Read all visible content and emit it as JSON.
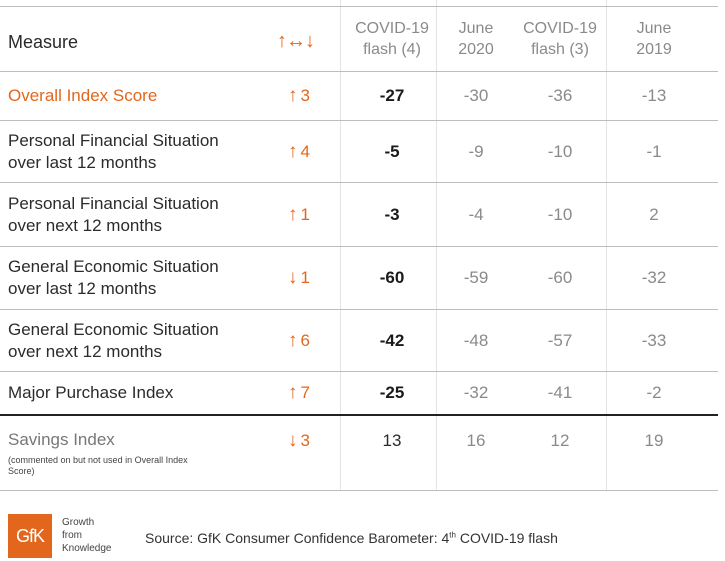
{
  "header": {
    "measure": "Measure",
    "change_arrows": "↑↔↓",
    "columns": [
      {
        "line1": "COVID-19",
        "line2": "flash (4)"
      },
      {
        "line1": "June",
        "line2": "2020"
      },
      {
        "line1": "COVID-19",
        "line2": "flash (3)"
      },
      {
        "line1": "June",
        "line2": "2019"
      }
    ]
  },
  "rows": [
    {
      "line1": "Overall Index Score",
      "line2": "",
      "arrow": "↑",
      "change": "3",
      "v1": "-27",
      "v2": "-30",
      "v3": "-36",
      "v4": "-13"
    },
    {
      "line1": "Personal Financial Situation",
      "line2": "over last 12 months",
      "arrow": "↑",
      "change": "4",
      "v1": "-5",
      "v2": "-9",
      "v3": "-10",
      "v4": "-1"
    },
    {
      "line1": "Personal Financial Situation",
      "line2": "over next 12 months",
      "arrow": "↑",
      "change": "1",
      "v1": "-3",
      "v2": "-4",
      "v3": "-10",
      "v4": "2"
    },
    {
      "line1": "General Economic Situation",
      "line2": "over last 12 months",
      "arrow": "↓",
      "change": "1",
      "v1": "-60",
      "v2": "-59",
      "v3": "-60",
      "v4": "-32"
    },
    {
      "line1": "General Economic Situation",
      "line2": "over next 12 months",
      "arrow": "↑",
      "change": "6",
      "v1": "-42",
      "v2": "-48",
      "v3": "-57",
      "v4": "-33"
    },
    {
      "line1": "Major Purchase Index",
      "line2": "",
      "arrow": "↑",
      "change": "7",
      "v1": "-25",
      "v2": "-32",
      "v3": "-41",
      "v4": "-2"
    },
    {
      "line1": "Savings Index",
      "line2": "",
      "note": "(commented on but not used in Overall Index Score)",
      "arrow": "↓",
      "change": "3",
      "v1": "13",
      "v2": "16",
      "v3": "12",
      "v4": "19"
    }
  ],
  "footer": {
    "logo": "GfK",
    "tagline": [
      "Growth",
      "from",
      "Knowledge"
    ],
    "source_prefix": "Source: GfK Consumer Confidence Barometer: 4",
    "source_sup": "th",
    "source_suffix": " COVID-19 flash"
  },
  "colors": {
    "accent": "#e2671c",
    "muted": "#8a8a8a",
    "text": "#2b2b2b"
  }
}
